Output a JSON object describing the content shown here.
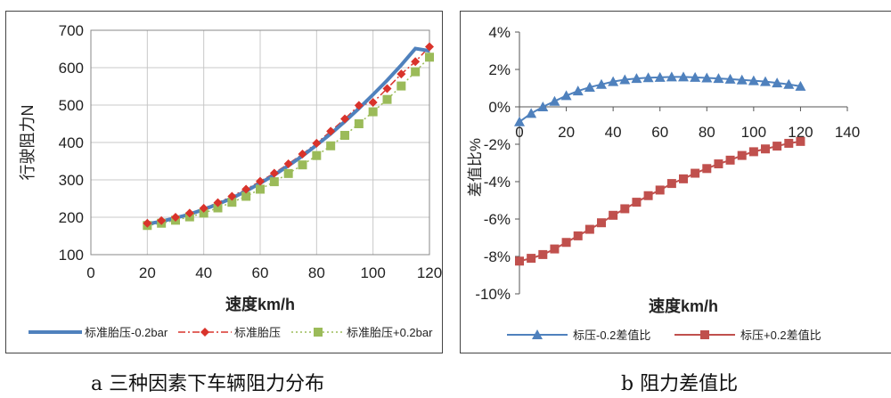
{
  "captions": {
    "a": "a 三种因素下车辆阻力分布",
    "b": "b  阻力差值比"
  },
  "chart_data": [
    {
      "id": "a",
      "type": "line",
      "title": "",
      "xlabel": "速度km/h",
      "ylabel": "行驶阻力N",
      "xlim": [
        0,
        120
      ],
      "ylim": [
        100,
        700
      ],
      "xticks": [
        0,
        20,
        40,
        60,
        80,
        100,
        120
      ],
      "yticks": [
        100,
        200,
        300,
        400,
        500,
        600,
        700
      ],
      "grid": true,
      "legend": "bottom",
      "x": [
        20,
        25,
        30,
        35,
        40,
        45,
        50,
        55,
        60,
        65,
        70,
        75,
        80,
        85,
        90,
        95,
        100,
        105,
        110,
        115,
        120
      ],
      "series": [
        {
          "name": "标准胎压-0.2bar",
          "style": "solid-thick",
          "color": "#4f81bd",
          "values": [
            182,
            189,
            198,
            208,
            221,
            235,
            251,
            270,
            291,
            313,
            338,
            364,
            393,
            423,
            456,
            491,
            528,
            566,
            607,
            651,
            645
          ]
        },
        {
          "name": "标准胎压",
          "style": "dashdot-diamond",
          "color": "#d9332b",
          "values": [
            184,
            191,
            200,
            211,
            224,
            239,
            256,
            275,
            296,
            318,
            343,
            369,
            398,
            430,
            463,
            499,
            507,
            544,
            583,
            616,
            656
          ]
        },
        {
          "name": "标准胎压+0.2bar",
          "style": "dotted-square",
          "color": "#9bbb59",
          "values": [
            178,
            184,
            192,
            201,
            211,
            225,
            240,
            256,
            275,
            295,
            317,
            340,
            365,
            391,
            419,
            450,
            482,
            515,
            551,
            589,
            628
          ]
        }
      ]
    },
    {
      "id": "b",
      "type": "line",
      "title": "",
      "xlabel": "速度km/h",
      "ylabel": "差值比%",
      "xlim": [
        0,
        140
      ],
      "ylim": [
        -10,
        4
      ],
      "xticks": [
        0,
        20,
        40,
        60,
        80,
        100,
        120,
        140
      ],
      "yticks": [
        "4%",
        "2%",
        "0%",
        "-2%",
        "-4%",
        "-6%",
        "-8%",
        "-10%"
      ],
      "ytick_values": [
        4,
        2,
        0,
        -2,
        -4,
        -6,
        -8,
        -10
      ],
      "grid": false,
      "legend": "bottom",
      "x": [
        0,
        5,
        10,
        15,
        20,
        25,
        30,
        35,
        40,
        45,
        50,
        55,
        60,
        65,
        70,
        75,
        80,
        85,
        90,
        95,
        100,
        105,
        110,
        115,
        120
      ],
      "series": [
        {
          "name": "标压-0.2差值比",
          "marker": "triangle",
          "color": "#4f81bd",
          "values": [
            -0.8,
            -0.35,
            0.0,
            0.3,
            0.6,
            0.85,
            1.05,
            1.2,
            1.35,
            1.45,
            1.52,
            1.56,
            1.58,
            1.6,
            1.6,
            1.58,
            1.55,
            1.52,
            1.48,
            1.44,
            1.4,
            1.35,
            1.28,
            1.2,
            1.1
          ]
        },
        {
          "name": "标压+0.2差值比",
          "marker": "square",
          "color": "#c0504d",
          "values": [
            -8.25,
            -8.1,
            -7.9,
            -7.6,
            -7.25,
            -6.9,
            -6.55,
            -6.2,
            -5.8,
            -5.45,
            -5.1,
            -4.75,
            -4.45,
            -4.1,
            -3.85,
            -3.55,
            -3.3,
            -3.05,
            -2.85,
            -2.6,
            -2.4,
            -2.25,
            -2.1,
            -1.95,
            -1.85
          ]
        }
      ]
    }
  ]
}
